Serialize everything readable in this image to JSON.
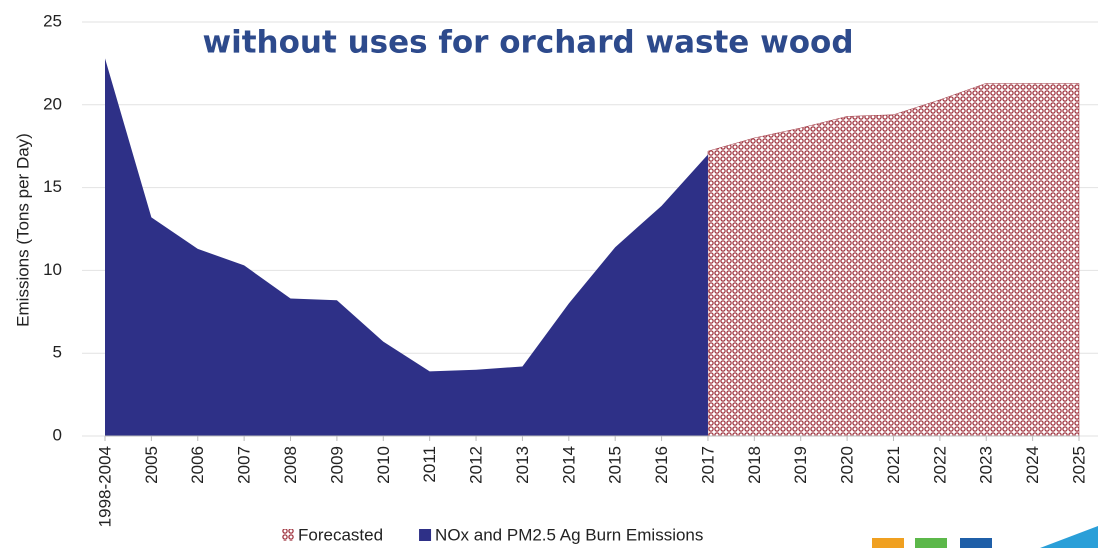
{
  "chart_data": {
    "type": "area",
    "title": "without uses for orchard waste wood",
    "y_label": "Emissions (Tons per Day)",
    "categories": [
      "1998-2004",
      "2005",
      "2006",
      "2007",
      "2008",
      "2009",
      "2010",
      "2011",
      "2012",
      "2013",
      "2014",
      "2015",
      "2016",
      "2017",
      "2018",
      "2019",
      "2020",
      "2021",
      "2022",
      "2023",
      "2024",
      "2025"
    ],
    "series": [
      {
        "name": "Forecasted",
        "color": "#a33a45",
        "pattern": true,
        "values": [
          null,
          null,
          null,
          null,
          null,
          null,
          null,
          null,
          null,
          null,
          null,
          null,
          null,
          17.2,
          18.0,
          18.6,
          19.3,
          19.4,
          20.3,
          21.3,
          21.3,
          21.3
        ]
      },
      {
        "name": "NOx and PM2.5 Ag Burn Emissions",
        "color": "#2e3087",
        "values": [
          22.8,
          13.2,
          11.3,
          10.3,
          8.3,
          8.2,
          5.7,
          3.9,
          4.0,
          4.2,
          8.0,
          11.4,
          13.9,
          17.0,
          null,
          null,
          null,
          null,
          null,
          null,
          null,
          null
        ]
      }
    ],
    "ylim": [
      0,
      25
    ],
    "yticks": [
      0,
      5,
      10,
      15,
      20,
      25
    ],
    "grid": true
  }
}
